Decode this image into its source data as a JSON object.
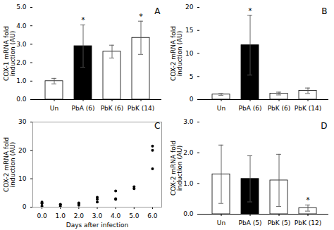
{
  "chart_data": [
    {
      "type": "bar",
      "title": "A",
      "categories": [
        "Un",
        "PbA (6)",
        "PbK (6)",
        "PbK (14)"
      ],
      "values": [
        1.0,
        2.9,
        2.6,
        3.35
      ],
      "errors": [
        0.15,
        1.15,
        0.35,
        0.9
      ],
      "ylabel": "COX-1 mRNA fold\ninduction (AU)",
      "ylim": [
        0,
        5
      ],
      "yticks": [
        0,
        1,
        2,
        3,
        4,
        5
      ],
      "colors": [
        "white",
        "black",
        "white",
        "white"
      ],
      "annotations": [
        {
          "text": "*",
          "category": "PbA (6)"
        },
        {
          "text": "*",
          "category": "PbK (14)"
        }
      ]
    },
    {
      "type": "bar",
      "title": "B",
      "categories": [
        "Un",
        "PbA (6)",
        "PbK (6)",
        "PbK (14)"
      ],
      "values": [
        1.1,
        11.8,
        1.3,
        1.9
      ],
      "errors": [
        0.2,
        6.5,
        0.3,
        0.6
      ],
      "ylabel": "COX-2 mRNA fold\ninduction (AU)",
      "ylim": [
        0,
        20
      ],
      "yticks": [
        0,
        5,
        10,
        15,
        20
      ],
      "colors": [
        "white",
        "black",
        "white",
        "white"
      ],
      "annotations": [
        {
          "text": "*",
          "category": "PbA (6)"
        }
      ]
    },
    {
      "type": "scatter",
      "title": "C",
      "x": [
        0,
        0,
        0,
        1,
        1,
        1,
        2,
        2,
        2,
        3,
        3,
        3,
        4,
        4,
        4,
        5,
        5,
        6,
        6,
        6
      ],
      "values": [
        0.4,
        1.3,
        1.8,
        0.2,
        0.8,
        1.0,
        0.7,
        1.5,
        1.2,
        1.8,
        2.8,
        3.5,
        3.0,
        5.7,
        2.7,
        6.5,
        7.2,
        13.5,
        20.0,
        21.5
      ],
      "xlabel": "Days after infection",
      "ylabel": "COX-2 mRNA fold\ninduction (AU)",
      "xlim": [
        -0.5,
        6.5
      ],
      "xticks": [
        0,
        1,
        2,
        3,
        4,
        5,
        6
      ],
      "ylim": [
        0,
        30
      ],
      "yticks": [
        0,
        10,
        20,
        30
      ],
      "color": "black"
    },
    {
      "type": "bar",
      "title": "D",
      "categories": [
        "Un",
        "PbA (5)",
        "PbK (5)",
        "PbK (12)"
      ],
      "values": [
        1.3,
        1.15,
        1.1,
        0.2
      ],
      "errors": [
        0.95,
        0.75,
        0.85,
        0.1
      ],
      "ylabel": "COX-2 mRNA fold\ninduction (AU)",
      "ylim": [
        0,
        3
      ],
      "yticks": [
        0,
        1,
        2,
        3
      ],
      "colors": [
        "white",
        "black",
        "white",
        "white"
      ],
      "annotations": [
        {
          "text": "*",
          "category": "PbK (12)"
        }
      ]
    }
  ]
}
